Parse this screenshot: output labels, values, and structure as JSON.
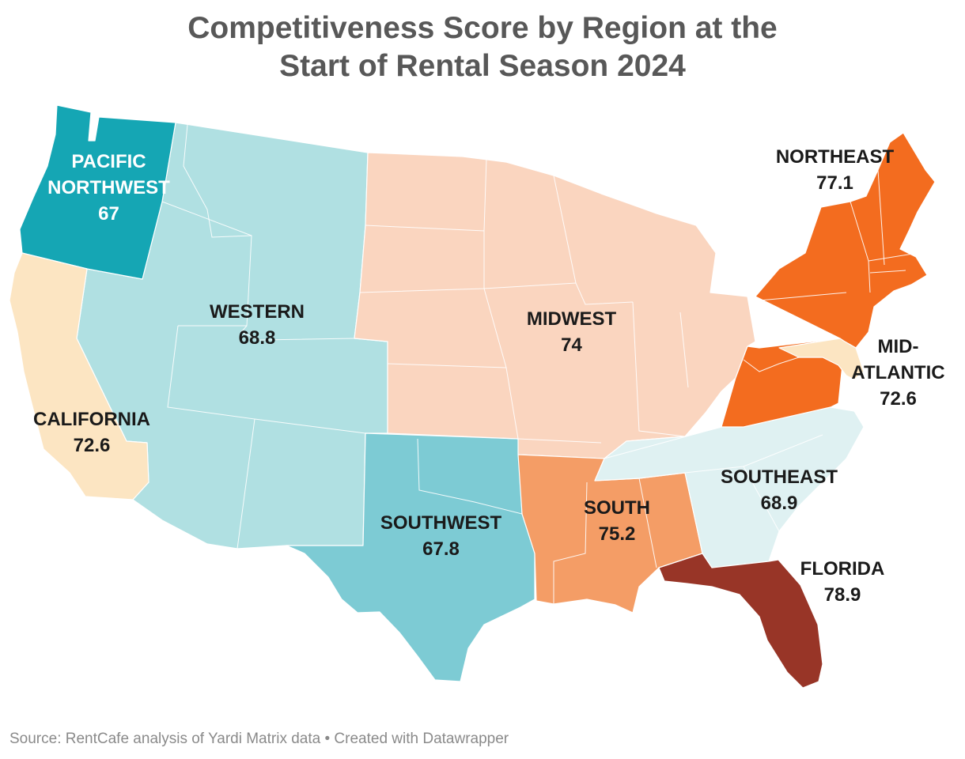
{
  "title_line1": "Competitiveness Score by Region at the",
  "title_line2": "Start of Rental Season 2024",
  "regions": [
    {
      "id": "pacific-northwest",
      "name_lines": [
        "PACIFIC",
        "NORTHWEST"
      ],
      "score": "67",
      "color": "#15a6b4",
      "label_color": "#ffffff"
    },
    {
      "id": "western",
      "name_lines": [
        "WESTERN"
      ],
      "score": "68.8",
      "color": "#b0e0e2",
      "label_color": "#1a1a1a"
    },
    {
      "id": "california",
      "name_lines": [
        "CALIFORNIA"
      ],
      "score": "72.6",
      "color": "#fce5c2",
      "label_color": "#1a1a1a"
    },
    {
      "id": "southwest",
      "name_lines": [
        "SOUTHWEST"
      ],
      "score": "67.8",
      "color": "#7dcbd4",
      "label_color": "#1a1a1a"
    },
    {
      "id": "midwest",
      "name_lines": [
        "MIDWEST"
      ],
      "score": "74",
      "color": "#fad5bf",
      "label_color": "#1a1a1a"
    },
    {
      "id": "south",
      "name_lines": [
        "SOUTH"
      ],
      "score": "75.2",
      "color": "#f49d66",
      "label_color": "#1a1a1a"
    },
    {
      "id": "southeast",
      "name_lines": [
        "SOUTHEAST"
      ],
      "score": "68.9",
      "color": "#dff1f2",
      "label_color": "#1a1a1a"
    },
    {
      "id": "florida",
      "name_lines": [
        "FLORIDA"
      ],
      "score": "78.9",
      "color": "#983527",
      "label_color": "#1a1a1a"
    },
    {
      "id": "northeast",
      "name_lines": [
        "NORTHEAST"
      ],
      "score": "77.1",
      "color": "#f36c1f",
      "label_color": "#1a1a1a"
    },
    {
      "id": "mid-atlantic",
      "name_lines": [
        "MID-",
        "ATLANTIC"
      ],
      "score": "72.6",
      "color": "#fce5c2",
      "label_color": "#1a1a1a"
    }
  ],
  "source": "Source: RentCafe analysis of Yardi Matrix data • Created with Datawrapper"
}
